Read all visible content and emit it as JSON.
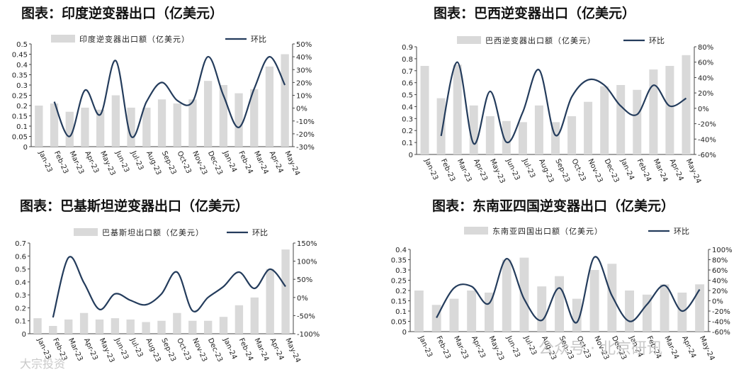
{
  "colors": {
    "bar": "#d9d9d9",
    "line": "#243c5c",
    "axis": "#444444"
  },
  "watermark": {
    "left_text": "大宗投资",
    "right_text": "公众号 · 北京研讯"
  },
  "chart_data": [
    {
      "type": "bar",
      "title": "图表：印度逆变器出口（亿美元）",
      "categories": [
        "Jan-23",
        "Feb-23",
        "Mar-23",
        "Apr-23",
        "May-23",
        "Jun-23",
        "Jul-23",
        "Aug-23",
        "Sep-23",
        "Oct-23",
        "Nov-23",
        "Dec-23",
        "Jan-24",
        "Feb-24",
        "Mar-24",
        "Apr-24",
        "May-24"
      ],
      "y_left_ticks": [
        "0",
        "0.05",
        "0.1",
        "0.15",
        "0.2",
        "0.25",
        "0.3",
        "0.35",
        "0.4",
        "0.45",
        "0.5"
      ],
      "y_right_ticks": [
        "-30%",
        "-20%",
        "-10%",
        "0%",
        "10%",
        "20%",
        "30%",
        "40%",
        "50%"
      ],
      "ylim_left": [
        0,
        0.5
      ],
      "ylim_right": [
        -30,
        50
      ],
      "series": [
        {
          "name": "印度逆变器出口额（亿美元）",
          "kind": "bar",
          "axis": "left",
          "values": [
            0.2,
            0.21,
            0.17,
            0.19,
            0.18,
            0.25,
            0.19,
            0.19,
            0.23,
            0.21,
            0.23,
            0.32,
            0.3,
            0.26,
            0.28,
            0.39,
            0.45
          ]
        },
        {
          "name": "环比",
          "kind": "line",
          "axis": "right",
          "values": [
            null,
            5,
            -22,
            14,
            -5,
            37,
            -22,
            5,
            20,
            6,
            5,
            40,
            10,
            -15,
            15,
            40,
            18
          ]
        }
      ],
      "legend": "top"
    },
    {
      "type": "bar",
      "title": "图表：巴西逆变器出口（亿美元）",
      "categories": [
        "Jan-23",
        "Feb-23",
        "Mar-23",
        "Apr-23",
        "May-23",
        "Jun-23",
        "Jul-23",
        "Aug-23",
        "Sep-23",
        "Oct-23",
        "Nov-23",
        "Dec-23",
        "Jan-24",
        "Feb-24",
        "Mar-24",
        "Apr-24",
        "May-24"
      ],
      "y_left_ticks": [
        "0",
        "0.1",
        "0.2",
        "0.3",
        "0.4",
        "0.5",
        "0.6",
        "0.7",
        "0.8",
        "0.9"
      ],
      "y_right_ticks": [
        "-60%",
        "-40%",
        "-20%",
        "0%",
        "20%",
        "40%",
        "60%",
        "80%"
      ],
      "ylim_left": [
        0,
        0.9
      ],
      "ylim_right": [
        -60,
        80
      ],
      "series": [
        {
          "name": "巴西逆变器出口额（亿美元）",
          "kind": "bar",
          "axis": "left",
          "values": [
            0.74,
            0.47,
            0.75,
            0.41,
            0.32,
            0.28,
            0.27,
            0.41,
            0.27,
            0.32,
            0.44,
            0.57,
            0.58,
            0.54,
            0.71,
            0.74,
            0.83
          ]
        },
        {
          "name": "环比",
          "kind": "line",
          "axis": "right",
          "values": [
            null,
            -36,
            60,
            -46,
            22,
            -44,
            -5,
            50,
            -35,
            15,
            37,
            30,
            3,
            -8,
            30,
            3,
            13
          ]
        }
      ],
      "legend": "top"
    },
    {
      "type": "bar",
      "title": "图表：巴基斯坦逆变器出口（亿美元）",
      "categories": [
        "Jan-23",
        "Feb-23",
        "Mar-23",
        "Apr-23",
        "May-23",
        "Jun-23",
        "Jul-23",
        "Aug-23",
        "Sep-23",
        "Oct-23",
        "Nov-23",
        "Dec-23",
        "Jan-24",
        "Feb-24",
        "Mar-24",
        "Apr-24",
        "May-24"
      ],
      "y_left_ticks": [
        "0",
        "0.1",
        "0.2",
        "0.3",
        "0.4",
        "0.5",
        "0.6",
        "0.7"
      ],
      "y_right_ticks": [
        "-100%",
        "-50%",
        "0%",
        "50%",
        "100%",
        "150%"
      ],
      "ylim_left": [
        0,
        0.7
      ],
      "ylim_right": [
        -100,
        150
      ],
      "series": [
        {
          "name": "巴基斯坦出口额（亿美元）",
          "kind": "bar",
          "axis": "left",
          "values": [
            0.12,
            0.06,
            0.11,
            0.16,
            0.11,
            0.12,
            0.11,
            0.09,
            0.1,
            0.16,
            0.1,
            0.1,
            0.13,
            0.22,
            0.28,
            0.5,
            0.65
          ]
        },
        {
          "name": "环比",
          "kind": "line",
          "axis": "right",
          "values": [
            null,
            -55,
            110,
            40,
            -33,
            10,
            -8,
            -20,
            10,
            70,
            -37,
            0,
            30,
            70,
            25,
            78,
            30
          ]
        }
      ],
      "legend": "top"
    },
    {
      "type": "bar",
      "title": "图表：东南亚四国逆变器出口（亿美元）",
      "categories": [
        "Jan-23",
        "Feb-23",
        "Mar-23",
        "Apr-23",
        "May-23",
        "Jun-23",
        "Jul-23",
        "Aug-23",
        "Sep-23",
        "Oct-23",
        "Nov-23",
        "Dec-23",
        "Jan-24",
        "Feb-24",
        "Mar-24",
        "Apr-24",
        "May-24"
      ],
      "y_left_ticks": [
        "0",
        "0.05",
        "0.1",
        "0.15",
        "0.2",
        "0.25",
        "0.3",
        "0.35",
        "0.4"
      ],
      "y_right_ticks": [
        "-60%",
        "-40%",
        "-20%",
        "0%",
        "20%",
        "40%",
        "60%",
        "80%",
        "100%"
      ],
      "ylim_left": [
        0,
        0.4
      ],
      "ylim_right": [
        -60,
        100
      ],
      "series": [
        {
          "name": "东南亚四国出口额（亿美元）",
          "kind": "bar",
          "axis": "left",
          "values": [
            0.2,
            0.13,
            0.16,
            0.2,
            0.19,
            0.35,
            0.36,
            0.22,
            0.27,
            0.16,
            0.3,
            0.33,
            0.2,
            0.18,
            0.23,
            0.19,
            0.23
          ]
        },
        {
          "name": "环比",
          "kind": "line",
          "axis": "right",
          "values": [
            null,
            -33,
            25,
            28,
            -5,
            82,
            3,
            -38,
            25,
            -42,
            85,
            10,
            -40,
            -7,
            30,
            -20,
            22
          ]
        }
      ],
      "legend": "top"
    }
  ]
}
